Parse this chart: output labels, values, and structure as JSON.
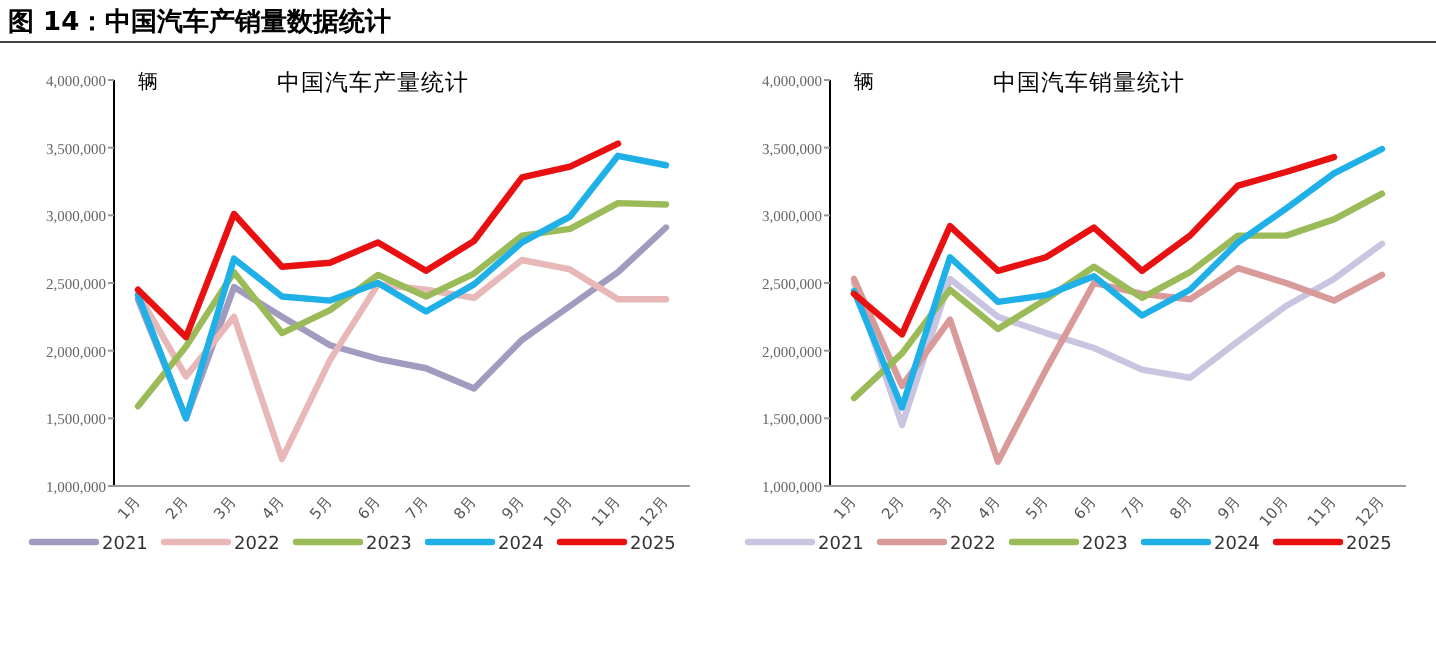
{
  "chart_data": [
    {
      "type": "line",
      "title": "中国汽车产量统计",
      "ylabel": "辆",
      "annotations": [
        "图 14：中国汽车产销量数据统计"
      ],
      "categories": [
        "1月",
        "2月",
        "3月",
        "4月",
        "5月",
        "6月",
        "7月",
        "8月",
        "9月",
        "10月",
        "11月",
        "12月"
      ],
      "ylim": [
        1000000,
        4000000
      ],
      "yticks": [
        {
          "value": 1000000,
          "label": "1,000,000"
        },
        {
          "value": 1500000,
          "label": "1,500,000"
        },
        {
          "value": 2000000,
          "label": "2,000,000"
        },
        {
          "value": 2500000,
          "label": "2,500,000"
        },
        {
          "value": 3000000,
          "label": "3,000,000"
        },
        {
          "value": 3500000,
          "label": "3,500,000"
        },
        {
          "value": 4000000,
          "label": "4,000,000"
        }
      ],
      "legend": "bottom",
      "series": [
        {
          "name": "2021",
          "color": "#a29bc0",
          "values": [
            2380000,
            1500000,
            2470000,
            2250000,
            2040000,
            1940000,
            1870000,
            1720000,
            2080000,
            2330000,
            2580000,
            2910000
          ]
        },
        {
          "name": "2022",
          "color": "#e8b8b8",
          "values": [
            2420000,
            1810000,
            2250000,
            1200000,
            1930000,
            2490000,
            2450000,
            2390000,
            2670000,
            2600000,
            2380000,
            2380000
          ]
        },
        {
          "name": "2023",
          "color": "#9bbb59",
          "values": [
            1590000,
            2030000,
            2580000,
            2130000,
            2300000,
            2560000,
            2400000,
            2570000,
            2850000,
            2900000,
            3090000,
            3080000
          ]
        },
        {
          "name": "2024",
          "color": "#1fb0e8",
          "values": [
            2410000,
            1500000,
            2680000,
            2400000,
            2370000,
            2500000,
            2290000,
            2490000,
            2800000,
            2990000,
            3440000,
            3370000
          ]
        },
        {
          "name": "2025",
          "color": "#e81010",
          "values": [
            2450000,
            2100000,
            3010000,
            2620000,
            2650000,
            2800000,
            2590000,
            2810000,
            3280000,
            3360000,
            3530000,
            null
          ]
        }
      ]
    },
    {
      "type": "line",
      "title": "中国汽车销量统计",
      "ylabel": "辆",
      "categories": [
        "1月",
        "2月",
        "3月",
        "4月",
        "5月",
        "6月",
        "7月",
        "8月",
        "9月",
        "10月",
        "11月",
        "12月"
      ],
      "ylim": [
        1000000,
        4000000
      ],
      "yticks": [
        {
          "value": 1000000,
          "label": "1,000,000"
        },
        {
          "value": 1500000,
          "label": "1,500,000"
        },
        {
          "value": 2000000,
          "label": "2,000,000"
        },
        {
          "value": 2500000,
          "label": "2,500,000"
        },
        {
          "value": 3000000,
          "label": "3,000,000"
        },
        {
          "value": 3500000,
          "label": "3,500,000"
        },
        {
          "value": 4000000,
          "label": "4,000,000"
        }
      ],
      "legend": "bottom",
      "series": [
        {
          "name": "2021",
          "color": "#c9c5e0",
          "values": [
            2500000,
            1450000,
            2530000,
            2250000,
            2130000,
            2020000,
            1860000,
            1800000,
            2070000,
            2330000,
            2530000,
            2790000
          ]
        },
        {
          "name": "2022",
          "color": "#d99a9a",
          "values": [
            2530000,
            1740000,
            2230000,
            1180000,
            1860000,
            2500000,
            2420000,
            2380000,
            2610000,
            2500000,
            2370000,
            2560000
          ]
        },
        {
          "name": "2023",
          "color": "#9bbb59",
          "values": [
            1650000,
            1980000,
            2450000,
            2160000,
            2380000,
            2620000,
            2390000,
            2580000,
            2850000,
            2850000,
            2970000,
            3160000
          ]
        },
        {
          "name": "2024",
          "color": "#1fb0e8",
          "values": [
            2440000,
            1580000,
            2690000,
            2360000,
            2410000,
            2550000,
            2260000,
            2450000,
            2800000,
            3050000,
            3310000,
            3490000
          ]
        },
        {
          "name": "2025",
          "color": "#e81010",
          "values": [
            2420000,
            2120000,
            2920000,
            2590000,
            2690000,
            2910000,
            2590000,
            2850000,
            3220000,
            3320000,
            3430000,
            null
          ]
        }
      ]
    }
  ]
}
